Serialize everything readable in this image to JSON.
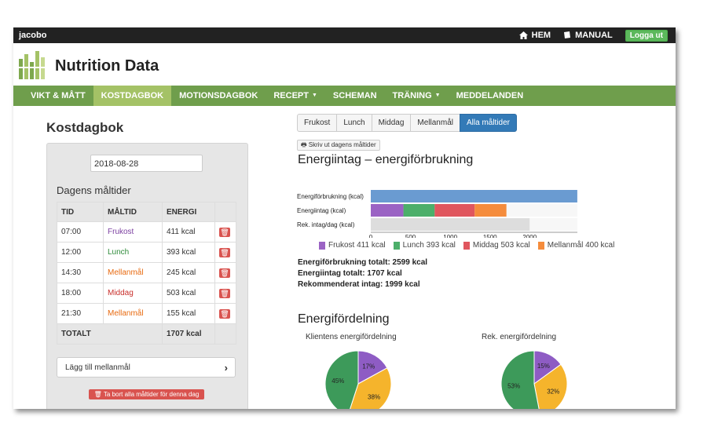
{
  "topbar": {
    "user": "jacobo",
    "home_label": "HEM",
    "manual_label": "MANUAL",
    "logout_label": "Logga ut"
  },
  "brand": {
    "title": "Nutrition Data"
  },
  "nav": {
    "items": [
      "VIKT & MÅTT",
      "KOSTDAGBOK",
      "MOTIONSDAGBOK",
      "RECEPT",
      "SCHEMAN",
      "TRÄNING",
      "MEDDELANDEN"
    ]
  },
  "diary": {
    "title": "Kostdagbok",
    "date": "2018-08-28",
    "meals_heading": "Dagens måltider",
    "columns": [
      "TID",
      "MÅLTID",
      "ENERGI"
    ],
    "rows": [
      {
        "time": "07:00",
        "meal": "Frukost",
        "energy": "411 kcal",
        "color": "#7b3fa0"
      },
      {
        "time": "12:00",
        "meal": "Lunch",
        "energy": "393 kcal",
        "color": "#2e8b3a"
      },
      {
        "time": "14:30",
        "meal": "Mellanmål",
        "energy": "245 kcal",
        "color": "#e86a10"
      },
      {
        "time": "18:00",
        "meal": "Middag",
        "energy": "503 kcal",
        "color": "#c9302c"
      },
      {
        "time": "21:30",
        "meal": "Mellanmål",
        "energy": "155 kcal",
        "color": "#e86a10"
      }
    ],
    "total_label": "TOTALT",
    "total_value": "1707 kcal",
    "add_snack": "Lägg till mellanmål",
    "delete_all": "Ta bort alla måltider för denna dag"
  },
  "filters": {
    "buttons": [
      "Frukost",
      "Lunch",
      "Middag",
      "Mellanmål",
      "Alla måltider"
    ],
    "active": "Alla måltider"
  },
  "print_label": "Skriv ut dagens måltider",
  "energy": {
    "heading": "Energiintag – energiförbrukning",
    "totals": [
      "Energiförbrukning totalt: 2599 kcal",
      "Energiintag totalt: 1707 kcal",
      "Rekommenderat intag: 1999 kcal"
    ]
  },
  "distribution": {
    "heading": "Energifördelning"
  },
  "chart_data": [
    {
      "type": "bar",
      "orientation": "horizontal",
      "categories": [
        "Energiförbrukning (kcal)",
        "Energiintag (kcal)",
        "Rek. intag/dag (kcal)"
      ],
      "xticks": [
        0,
        500,
        1000,
        1500,
        2000
      ],
      "xlim": [
        0,
        2600
      ],
      "series": [
        {
          "name": "Energiförbrukning",
          "color": "#6a9bd1",
          "values": [
            2599,
            0,
            0
          ]
        },
        {
          "name": "Frukost 411 kcal",
          "color": "#9b63c4",
          "values": [
            0,
            411,
            0
          ]
        },
        {
          "name": "Lunch 393 kcal",
          "color": "#4caf6a",
          "values": [
            0,
            393,
            0
          ]
        },
        {
          "name": "Middag 503 kcal",
          "color": "#e0565e",
          "values": [
            0,
            503,
            0
          ]
        },
        {
          "name": "Mellanmål 400 kcal",
          "color": "#f58c3c",
          "values": [
            0,
            400,
            0
          ]
        },
        {
          "name": "Rekommenderat",
          "color": "#dddddd",
          "values": [
            0,
            0,
            1999
          ]
        }
      ],
      "legend": "bottom"
    },
    {
      "type": "pie",
      "title": "Klientens energifördelning",
      "values": [
        17,
        38,
        45
      ],
      "labels": [
        "17%",
        "38%",
        "45%"
      ],
      "colors": [
        "#8e5cc4",
        "#f5b42c",
        "#3d9a5a"
      ]
    },
    {
      "type": "pie",
      "title": "Rek. energifördelning",
      "values": [
        15,
        32,
        53
      ],
      "labels": [
        "15%",
        "32%",
        "53%"
      ],
      "colors": [
        "#8e5cc4",
        "#f5b42c",
        "#3d9a5a"
      ]
    }
  ]
}
